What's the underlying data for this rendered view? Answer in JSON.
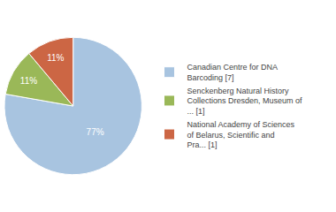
{
  "chart_data": {
    "type": "pie",
    "categories": [
      "Canadian Centre for DNA\nBarcoding [7]",
      "Senckenberg Natural History\nCollections Dresden, Museum of\n... [1]",
      "National Academy of Sciences\nof Belarus, Scientific and\nPra... [1]"
    ],
    "values": [
      77,
      11,
      11
    ],
    "value_labels": [
      "77%",
      "11%",
      "11%"
    ],
    "colors": [
      "#a8c4e0",
      "#9ab858",
      "#cc6644"
    ],
    "data_labels": true,
    "legend": "right"
  }
}
